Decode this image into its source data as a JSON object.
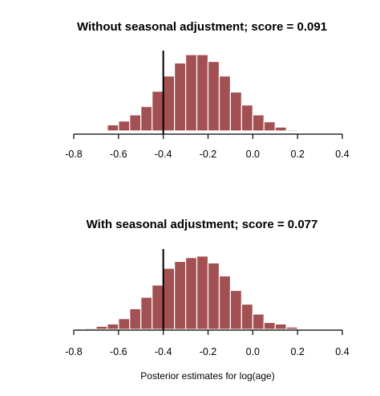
{
  "chart_data": [
    {
      "type": "bar",
      "title": "Without seasonal adjustment; score = 0.091",
      "xlabel": "",
      "ylabel": "",
      "xlim": [
        -0.8,
        0.4
      ],
      "xticks": [
        "-0.8",
        "-0.6",
        "-0.4",
        "-0.2",
        "0.0",
        "0.2",
        "0.4"
      ],
      "bin_width": 0.05,
      "bin_starts": [
        -0.75,
        -0.7,
        -0.65,
        -0.6,
        -0.55,
        -0.5,
        -0.45,
        -0.4,
        -0.35,
        -0.3,
        -0.25,
        -0.2,
        -0.15,
        -0.1,
        -0.05,
        0.0,
        0.05,
        0.1,
        0.15
      ],
      "values": [
        0.008,
        0.012,
        0.08,
        0.13,
        0.21,
        0.32,
        0.52,
        0.72,
        0.89,
        1.0,
        1.0,
        0.91,
        0.72,
        0.51,
        0.34,
        0.21,
        0.12,
        0.05,
        0.015
      ],
      "reference_line_x": -0.4,
      "grid": false,
      "bar_color": "#a35052"
    },
    {
      "type": "bar",
      "title": "With seasonal adjustment; score = 0.077",
      "xlabel": "Posterior estimates for log(age)",
      "ylabel": "",
      "xlim": [
        -0.8,
        0.4
      ],
      "xticks": [
        "-0.8",
        "-0.6",
        "-0.4",
        "-0.2",
        "0.0",
        "0.2",
        "0.4"
      ],
      "bin_width": 0.05,
      "bin_starts": [
        -0.8,
        -0.75,
        -0.7,
        -0.65,
        -0.6,
        -0.55,
        -0.5,
        -0.45,
        -0.4,
        -0.35,
        -0.3,
        -0.25,
        -0.2,
        -0.15,
        -0.1,
        -0.05,
        0.0,
        0.05,
        0.1,
        0.15
      ],
      "values": [
        0.01,
        0.015,
        0.04,
        0.07,
        0.14,
        0.27,
        0.42,
        0.58,
        0.8,
        0.89,
        0.94,
        0.96,
        0.87,
        0.7,
        0.51,
        0.33,
        0.2,
        0.09,
        0.07,
        0.03
      ],
      "reference_line_x": -0.4,
      "grid": false,
      "bar_color": "#a35052"
    }
  ]
}
